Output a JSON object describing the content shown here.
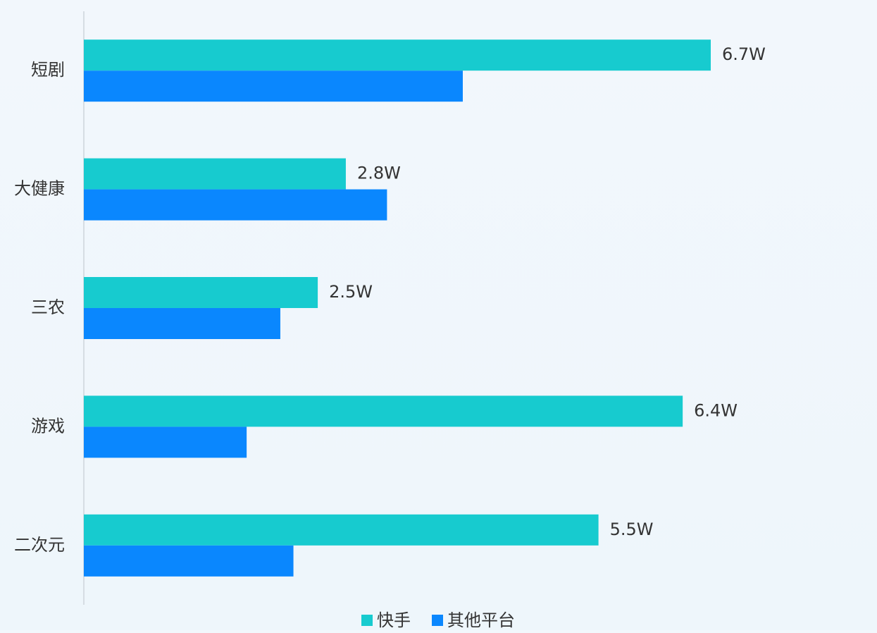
{
  "chart_data": {
    "type": "hbar",
    "categories": [
      "短剧",
      "大健康",
      "三农",
      "游戏",
      "二次元"
    ],
    "series": [
      {
        "name": "快手",
        "color": "#17cbcf",
        "values": [
          6.7,
          2.8,
          2.5,
          6.4,
          5.5
        ],
        "value_labels": [
          "6.7W",
          "2.8W",
          "2.5W",
          "6.4W",
          "5.5W"
        ]
      },
      {
        "name": "其他平台",
        "color": "#0a87fe",
        "values": [
          4.05,
          3.24,
          2.1,
          1.74,
          2.24
        ]
      }
    ],
    "legend": "bottom"
  }
}
